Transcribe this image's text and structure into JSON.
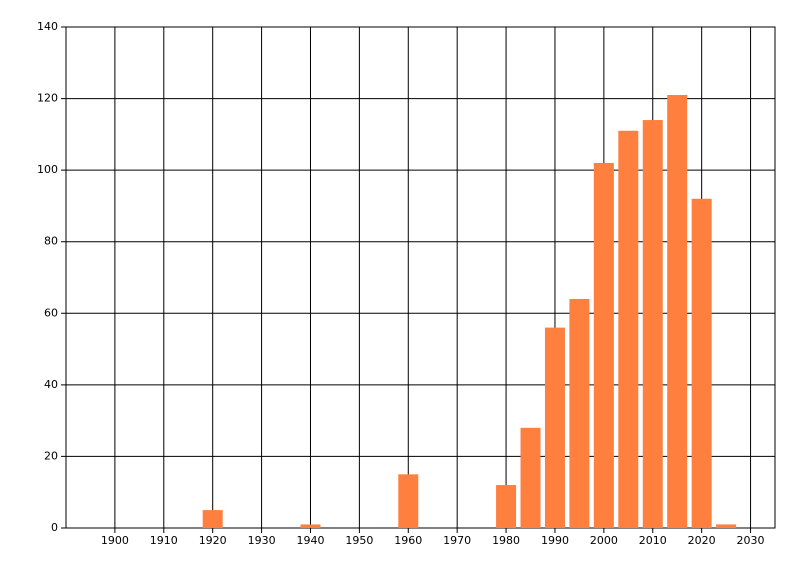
{
  "chart_data": {
    "type": "bar",
    "x": [
      1920,
      1940,
      1960,
      1980,
      1985,
      1990,
      1995,
      2000,
      2005,
      2010,
      2015,
      2020,
      2025
    ],
    "values": [
      5,
      1,
      15,
      12,
      28,
      56,
      64,
      102,
      111,
      114,
      121,
      92,
      1
    ],
    "color": "#ff7f3f",
    "xlim": [
      1890,
      2035
    ],
    "xticks": [
      1900,
      1910,
      1920,
      1930,
      1940,
      1950,
      1960,
      1970,
      1980,
      1990,
      2000,
      2010,
      2020,
      2030
    ],
    "ylim": [
      0,
      140
    ],
    "yticks": [
      0,
      20,
      40,
      60,
      80,
      100,
      120,
      140
    ],
    "grid": true
  }
}
